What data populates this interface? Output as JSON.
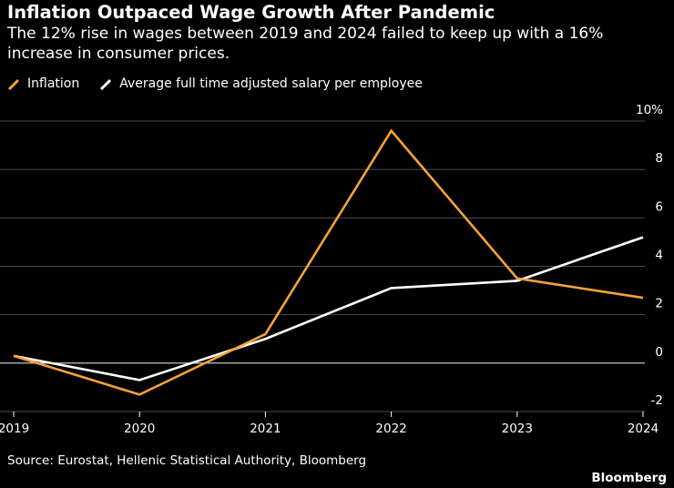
{
  "title": "Inflation Outpaced Wage Growth After Pandemic",
  "subtitle": "The 12% rise in wages between 2019 and 2024 failed to keep up with a 16% increase in consumer prices.",
  "source": "Source: Eurostat, Hellenic Statistical Authority, Bloomberg",
  "brand": "Bloomberg",
  "colors": {
    "background": "#000000",
    "inflation": "#f5a23a",
    "salary": "#ffffff",
    "grid": "#4a4a4a",
    "zero_line": "#d9d9d9"
  },
  "chart_data": {
    "type": "line",
    "title": "Inflation Outpaced Wage Growth After Pandemic",
    "x": [
      "2019",
      "2020",
      "2021",
      "2022",
      "2023",
      "2024"
    ],
    "series": [
      {
        "name": "Inflation",
        "color": "#f5a23a",
        "values": [
          0.3,
          -1.3,
          1.2,
          9.6,
          3.5,
          2.7
        ]
      },
      {
        "name": "Average full time adjusted salary per employee",
        "color": "#ffffff",
        "values": [
          0.3,
          -0.7,
          1.0,
          3.1,
          3.4,
          5.2
        ]
      }
    ],
    "ylim": [
      -2,
      10
    ],
    "yticks": [
      -2,
      0,
      2,
      4,
      6,
      8,
      10
    ],
    "ytick_labels": [
      "-2",
      "0",
      "2",
      "4",
      "6",
      "8",
      "10%"
    ],
    "xlabel": "",
    "ylabel": "",
    "grid": true,
    "legend_position": "top-left",
    "y_axis_side": "right"
  }
}
